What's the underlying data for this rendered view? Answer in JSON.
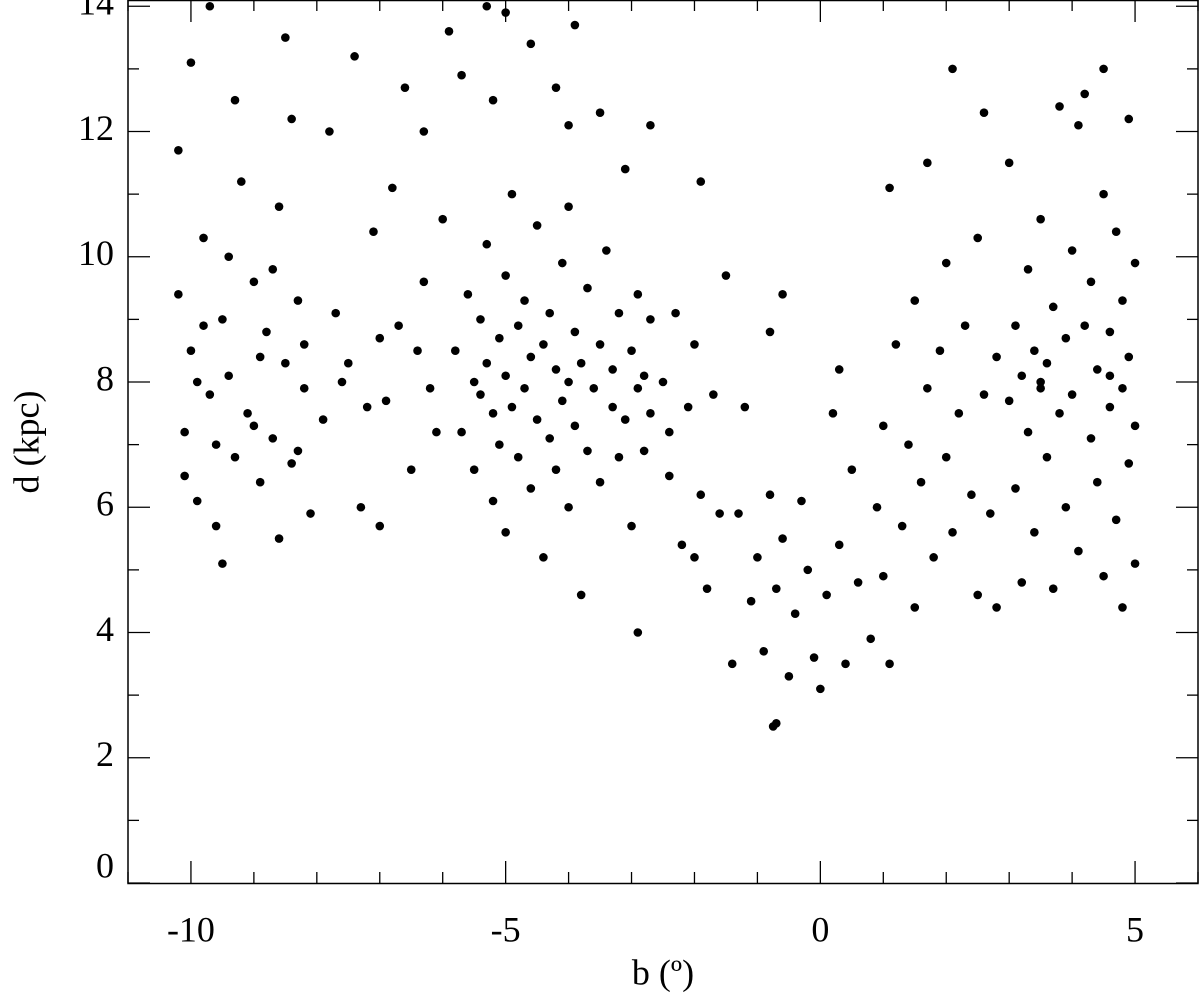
{
  "chart_data": {
    "type": "scatter",
    "xlabel": "b (º)",
    "ylabel": "d (kpc)",
    "xlim": [
      -11,
      6
    ],
    "ylim": [
      0,
      14.1
    ],
    "xticks": [
      -10,
      -5,
      0,
      5
    ],
    "yticks": [
      0,
      2,
      4,
      6,
      8,
      10,
      12,
      14
    ],
    "xminor_ticks": [
      -11,
      -9,
      -8,
      -7,
      -6,
      -4,
      -3,
      -2,
      -1,
      1,
      2,
      3,
      4,
      6
    ],
    "yminor_ticks": [
      1,
      3,
      5,
      7,
      9,
      11,
      13
    ],
    "series": [
      {
        "color": "#000000",
        "x": [
          -10.2,
          -10.1,
          -10.0,
          -9.9,
          -9.8,
          -9.7,
          -9.6,
          -9.5,
          -9.4,
          -9.3,
          -9.2,
          -9.1,
          -9.0,
          -8.9,
          -8.8,
          -8.7,
          -8.6,
          -8.5,
          -8.4,
          -8.3,
          -8.2,
          -8.1,
          -10.2,
          -10.0,
          -9.7,
          -9.5,
          -9.3,
          -8.5,
          -8.4,
          -9.9,
          -9.6,
          -9.4,
          -8.9,
          -8.3,
          -8.6,
          -10.1,
          -9.0,
          -8.7,
          -9.8,
          -8.2,
          -7.9,
          -7.7,
          -7.5,
          -7.3,
          -7.1,
          -6.9,
          -6.7,
          -6.5,
          -6.3,
          -6.1,
          -7.8,
          -7.4,
          -6.6,
          -6.3,
          -7.0,
          -6.8,
          -7.6,
          -7.2,
          -6.4,
          -6.0,
          -6.2,
          -7.0,
          -5.8,
          -5.7,
          -5.6,
          -5.5,
          -5.5,
          -5.4,
          -5.4,
          -5.3,
          -5.3,
          -5.2,
          -5.2,
          -5.1,
          -5.1,
          -5.0,
          -5.0,
          -5.0,
          -4.9,
          -4.9,
          -4.8,
          -4.8,
          -4.7,
          -4.7,
          -4.6,
          -4.6,
          -4.5,
          -4.5,
          -4.4,
          -4.4,
          -4.3,
          -4.3,
          -4.2,
          -4.2,
          -4.1,
          -4.1,
          -4.0,
          -4.0,
          -4.0,
          -3.9,
          -3.9,
          -3.8,
          -3.8,
          -3.7,
          -3.7,
          -3.6,
          -3.5,
          -3.5,
          -3.4,
          -3.3,
          -3.3,
          -3.2,
          -3.2,
          -3.1,
          -3.0,
          -3.0,
          -2.9,
          -2.9,
          -2.8,
          -2.8,
          -2.7,
          -2.7,
          -5.9,
          -5.7,
          -5.0,
          -4.6,
          -3.9,
          -4.2,
          -3.5,
          -4.0,
          -5.2,
          -2.7,
          -3.1,
          -5.3,
          -2.9,
          -2.5,
          -2.4,
          -2.3,
          -2.2,
          -2.1,
          -2.0,
          -1.9,
          -1.9,
          -1.8,
          -1.7,
          -1.6,
          -1.5,
          -2.4,
          -2.0,
          -1.4,
          -1.3,
          -1.2,
          -1.1,
          -1.0,
          -0.9,
          -0.8,
          -0.7,
          -0.75,
          -0.7,
          -0.6,
          -0.6,
          -0.5,
          -0.4,
          -0.3,
          -0.2,
          -0.1,
          0.0,
          0.1,
          0.2,
          0.3,
          0.4,
          0.5,
          0.6,
          -0.8,
          0.3,
          0.8,
          0.9,
          1.0,
          1.0,
          1.1,
          1.1,
          1.2,
          1.3,
          1.4,
          1.5,
          1.5,
          1.6,
          1.7,
          1.7,
          1.8,
          1.9,
          2.0,
          2.0,
          2.1,
          2.1,
          2.2,
          2.3,
          2.4,
          2.5,
          2.5,
          2.6,
          2.6,
          2.7,
          2.8,
          2.8,
          3.0,
          3.0,
          3.1,
          3.1,
          3.2,
          3.2,
          3.3,
          3.3,
          3.4,
          3.4,
          3.5,
          3.5,
          3.6,
          3.6,
          3.7,
          3.7,
          3.8,
          3.8,
          3.9,
          3.9,
          4.0,
          4.0,
          4.1,
          4.1,
          4.2,
          4.2,
          4.3,
          4.3,
          4.4,
          4.4,
          4.5,
          4.5,
          4.5,
          4.6,
          4.6,
          4.7,
          4.7,
          4.8,
          4.8,
          4.8,
          4.9,
          4.9,
          4.9,
          5.0,
          5.0,
          5.0,
          4.6,
          3.5
        ],
        "values": [
          9.4,
          7.2,
          8.5,
          6.1,
          10.3,
          7.8,
          5.7,
          9.0,
          8.1,
          6.8,
          11.2,
          7.5,
          9.6,
          6.4,
          8.8,
          7.1,
          10.8,
          8.3,
          6.7,
          9.3,
          7.9,
          5.9,
          11.7,
          13.1,
          14.0,
          5.1,
          12.5,
          13.5,
          12.2,
          8.0,
          7.0,
          10.0,
          8.4,
          6.9,
          5.5,
          6.5,
          7.3,
          9.8,
          8.9,
          8.6,
          7.4,
          9.1,
          8.3,
          6.0,
          10.4,
          7.7,
          8.9,
          6.6,
          9.6,
          7.2,
          12.0,
          13.2,
          12.7,
          12.0,
          5.7,
          11.1,
          8.0,
          7.6,
          8.5,
          10.6,
          7.9,
          8.7,
          8.5,
          7.2,
          9.4,
          8.0,
          6.6,
          7.8,
          9.0,
          8.3,
          10.2,
          7.5,
          6.1,
          8.7,
          7.0,
          9.7,
          8.1,
          5.6,
          7.6,
          11.0,
          8.9,
          6.8,
          7.9,
          9.3,
          8.4,
          6.3,
          7.4,
          10.5,
          8.6,
          5.2,
          7.1,
          9.1,
          8.2,
          6.6,
          7.7,
          9.9,
          8.0,
          6.0,
          10.8,
          7.3,
          8.8,
          4.6,
          8.3,
          6.9,
          9.5,
          7.9,
          6.4,
          8.6,
          10.1,
          7.6,
          8.2,
          6.8,
          9.1,
          7.4,
          8.5,
          5.7,
          7.9,
          9.4,
          6.9,
          8.1,
          7.5,
          9.0,
          13.6,
          12.9,
          13.9,
          13.4,
          13.7,
          12.7,
          12.3,
          12.1,
          12.5,
          12.1,
          11.4,
          14.0,
          4.0,
          8.0,
          6.5,
          9.1,
          5.4,
          7.6,
          8.6,
          11.2,
          6.2,
          4.7,
          7.8,
          5.9,
          9.7,
          7.2,
          5.2,
          3.5,
          5.9,
          7.6,
          4.5,
          5.2,
          3.7,
          6.2,
          2.55,
          2.5,
          4.7,
          9.4,
          5.5,
          3.3,
          4.3,
          6.1,
          5.0,
          3.6,
          3.1,
          4.6,
          7.5,
          5.4,
          3.5,
          6.6,
          4.8,
          8.8,
          8.2,
          3.9,
          6.0,
          4.9,
          7.3,
          11.1,
          3.5,
          8.6,
          5.7,
          7.0,
          4.4,
          9.3,
          6.4,
          11.5,
          7.9,
          5.2,
          8.5,
          6.8,
          9.9,
          13.0,
          5.6,
          7.5,
          8.9,
          6.2,
          10.3,
          4.6,
          12.3,
          7.8,
          5.9,
          8.4,
          4.4,
          7.7,
          11.5,
          8.9,
          6.3,
          4.8,
          8.1,
          9.8,
          7.2,
          8.5,
          5.6,
          7.9,
          10.6,
          6.8,
          8.3,
          9.2,
          4.7,
          12.4,
          7.5,
          8.7,
          6.0,
          10.1,
          7.8,
          12.1,
          5.3,
          8.9,
          12.6,
          7.1,
          9.6,
          6.4,
          8.2,
          13.0,
          4.9,
          11.0,
          7.6,
          8.8,
          5.8,
          10.4,
          7.9,
          9.3,
          4.4,
          8.4,
          6.7,
          12.2,
          7.3,
          9.9,
          5.1,
          8.1,
          8.0
        ]
      }
    ]
  }
}
